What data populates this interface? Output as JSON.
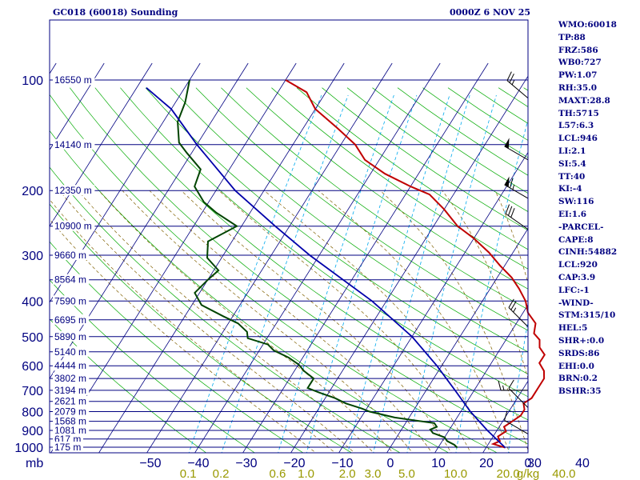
{
  "chart_data": {
    "type": "skew-t",
    "title_left": "GC018 (60018) Sounding",
    "title_right": "0000Z  6 NOV 25",
    "pressure_unit": "mb",
    "pressure_ticks": [
      100,
      200,
      300,
      400,
      500,
      600,
      700,
      800,
      900,
      1000
    ],
    "temperature_ticks": [
      -50,
      -40,
      -30,
      -20,
      -10,
      0,
      10,
      20,
      30,
      40
    ],
    "mixing_ratio_unit": "g/kg",
    "mixing_ratio_ticks": [
      "0.1",
      "0.2",
      "0.6",
      "1.0",
      "2.0",
      "3.0",
      "5.0",
      "10.0",
      "20.0",
      "40.0"
    ],
    "height_labels": [
      {
        "p": 100,
        "label": "16550 m"
      },
      {
        "p": 150,
        "label": "14140 m"
      },
      {
        "p": 200,
        "label": "12350 m"
      },
      {
        "p": 250,
        "label": "10900 m"
      },
      {
        "p": 300,
        "label": "9660 m"
      },
      {
        "p": 350,
        "label": "8564 m"
      },
      {
        "p": 400,
        "label": "7590 m"
      },
      {
        "p": 450,
        "label": "6695 m"
      },
      {
        "p": 500,
        "label": "5890 m"
      },
      {
        "p": 550,
        "label": "5140 m"
      },
      {
        "p": 600,
        "label": "4444 m"
      },
      {
        "p": 650,
        "label": "3802 m"
      },
      {
        "p": 700,
        "label": "3194 m"
      },
      {
        "p": 750,
        "label": "2621 m"
      },
      {
        "p": 800,
        "label": "2079 m"
      },
      {
        "p": 850,
        "label": "1568 m"
      },
      {
        "p": 900,
        "label": "1081 m"
      },
      {
        "p": 950,
        "label": "617 m"
      },
      {
        "p": 1000,
        "label": "175 m"
      }
    ],
    "series": [
      {
        "color": "#c00000",
        "points": [
          [
            1003,
            24
          ],
          [
            980,
            21
          ],
          [
            962,
            22
          ],
          [
            935,
            21
          ],
          [
            905,
            22
          ],
          [
            880,
            21
          ],
          [
            850,
            22
          ],
          [
            820,
            23
          ],
          [
            790,
            23
          ],
          [
            760,
            22
          ],
          [
            735,
            23
          ],
          [
            710,
            23
          ],
          [
            680,
            23
          ],
          [
            650,
            23
          ],
          [
            620,
            22
          ],
          [
            590,
            20
          ],
          [
            560,
            20
          ],
          [
            535,
            18
          ],
          [
            510,
            17
          ],
          [
            490,
            15
          ],
          [
            460,
            14
          ],
          [
            430,
            11
          ],
          [
            400,
            9
          ],
          [
            370,
            6
          ],
          [
            345,
            3
          ],
          [
            320,
            -1
          ],
          [
            295,
            -5
          ],
          [
            270,
            -10
          ],
          [
            250,
            -15
          ],
          [
            225,
            -20
          ],
          [
            205,
            -25
          ],
          [
            195,
            -30
          ],
          [
            180,
            -37
          ],
          [
            165,
            -43
          ],
          [
            150,
            -47
          ],
          [
            135,
            -53
          ],
          [
            120,
            -60
          ],
          [
            108,
            -64
          ],
          [
            100,
            -70
          ]
        ]
      },
      {
        "color": "#004400",
        "points": [
          [
            1003,
            14
          ],
          [
            985,
            13
          ],
          [
            962,
            11
          ],
          [
            940,
            10
          ],
          [
            915,
            7
          ],
          [
            895,
            6
          ],
          [
            880,
            7
          ],
          [
            860,
            6
          ],
          [
            830,
            -3
          ],
          [
            800,
            -9
          ],
          [
            785,
            -11
          ],
          [
            760,
            -15
          ],
          [
            735,
            -18
          ],
          [
            710,
            -22
          ],
          [
            690,
            -25
          ],
          [
            665,
            -25
          ],
          [
            650,
            -25
          ],
          [
            620,
            -28
          ],
          [
            595,
            -30
          ],
          [
            570,
            -33
          ],
          [
            545,
            -37
          ],
          [
            525,
            -39
          ],
          [
            505,
            -44
          ],
          [
            485,
            -45
          ],
          [
            460,
            -48
          ],
          [
            440,
            -52
          ],
          [
            410,
            -58
          ],
          [
            380,
            -61
          ],
          [
            350,
            -60
          ],
          [
            330,
            -59
          ],
          [
            305,
            -63
          ],
          [
            275,
            -65
          ],
          [
            250,
            -61
          ],
          [
            230,
            -67
          ],
          [
            215,
            -71
          ],
          [
            195,
            -75
          ],
          [
            175,
            -76
          ],
          [
            158,
            -81
          ],
          [
            148,
            -84
          ],
          [
            130,
            -87
          ],
          [
            115,
            -88
          ],
          [
            100,
            -90
          ]
        ]
      },
      {
        "color": "#0000aa",
        "points": [
          [
            1003,
            24
          ],
          [
            900,
            18
          ],
          [
            800,
            12
          ],
          [
            700,
            6
          ],
          [
            600,
            -1
          ],
          [
            500,
            -10
          ],
          [
            400,
            -23
          ],
          [
            300,
            -42
          ],
          [
            250,
            -53
          ],
          [
            200,
            -66
          ],
          [
            150,
            -80
          ],
          [
            120,
            -90
          ],
          [
            105,
            -98
          ]
        ]
      }
    ],
    "wind_barbs": [
      {
        "p": 112,
        "dir": 310,
        "spd": 25
      },
      {
        "p": 165,
        "dir": 300,
        "spd": 50
      },
      {
        "p": 210,
        "dir": 300,
        "spd": 65
      },
      {
        "p": 255,
        "dir": 305,
        "spd": 30
      },
      {
        "p": 470,
        "dir": 315,
        "spd": 25
      },
      {
        "p": 700,
        "dir": 270,
        "spd": 15
      },
      {
        "p": 780,
        "dir": 315,
        "spd": 10
      },
      {
        "p": 920,
        "dir": 300,
        "spd": 10
      }
    ],
    "indices": [
      "WMO:60018",
      "TP:88",
      "FRZ:586",
      "WB0:727",
      "PW:1.07",
      "RH:35.0",
      "MAXT:28.8",
      "TH:5715",
      "L57:6.3",
      "LCL:946",
      "LI:2.1",
      "SI:5.4",
      "TT:40",
      "KI:-4",
      "SW:116",
      "EI:1.6",
      "-PARCEL-",
      "CAPE:8",
      "CINH:54882",
      "LCL:920",
      "CAP:3.9",
      "LFC:-1",
      "-WIND-",
      "STM:315/10",
      "HEL:5",
      "SHR+:0.0",
      "SRDS:86",
      "EHI:0.0",
      "BRN:0.2",
      "BSHR:35"
    ],
    "colors": {
      "isobar": "#000080",
      "isotherm": "#000080",
      "dry_adiabat": "#00aa00",
      "mixing_ratio": "#00aaee",
      "moist_adiabat": "#806000",
      "tick_label": "#000080",
      "mixing_label": "#999900"
    }
  }
}
